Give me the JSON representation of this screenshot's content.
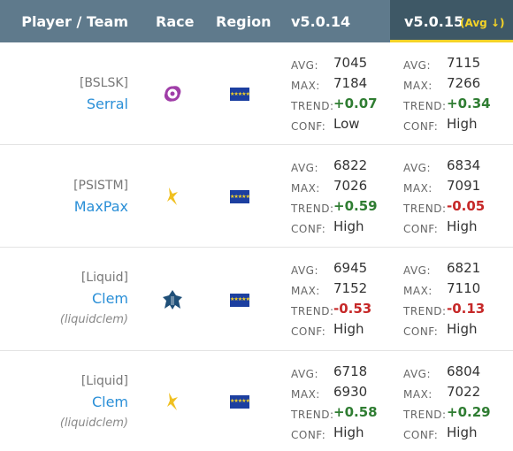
{
  "header": {
    "player_team": "Player / Team",
    "race": "Race",
    "region": "Region",
    "version_prev": "v5.0.14",
    "version_curr": "v5.0.15",
    "sort_indicator": "(Avg ↓)"
  },
  "labels": {
    "avg": "AVG:",
    "max": "MAX:",
    "trend": "TREND:",
    "conf": "CONF:"
  },
  "rows": [
    {
      "team": "[BSLSK]",
      "name": "Serral",
      "alias": "",
      "race": "zerg-icon",
      "region": "eu-flag-icon",
      "prev": {
        "avg": "7045",
        "max": "7184",
        "trend": "+0.07",
        "trend_dir": "pos",
        "conf": "Low"
      },
      "curr": {
        "avg": "7115",
        "max": "7266",
        "trend": "+0.34",
        "trend_dir": "pos",
        "conf": "High"
      }
    },
    {
      "team": "[PSISTM]",
      "name": "MaxPax",
      "alias": "",
      "race": "protoss-icon",
      "region": "eu-flag-icon",
      "prev": {
        "avg": "6822",
        "max": "7026",
        "trend": "+0.59",
        "trend_dir": "pos",
        "conf": "High"
      },
      "curr": {
        "avg": "6834",
        "max": "7091",
        "trend": "-0.05",
        "trend_dir": "neg",
        "conf": "High"
      }
    },
    {
      "team": "[Liquid]",
      "name": "Clem",
      "alias": "(liquidclem)",
      "race": "terran-icon",
      "region": "eu-flag-icon",
      "prev": {
        "avg": "6945",
        "max": "7152",
        "trend": "-0.53",
        "trend_dir": "neg",
        "conf": "High"
      },
      "curr": {
        "avg": "6821",
        "max": "7110",
        "trend": "-0.13",
        "trend_dir": "neg",
        "conf": "High"
      }
    },
    {
      "team": "[Liquid]",
      "name": "Clem",
      "alias": "(liquidclem)",
      "race": "protoss-icon",
      "region": "eu-flag-icon",
      "prev": {
        "avg": "6718",
        "max": "6930",
        "trend": "+0.58",
        "trend_dir": "pos",
        "conf": "High"
      },
      "curr": {
        "avg": "6804",
        "max": "7022",
        "trend": "+0.29",
        "trend_dir": "pos",
        "conf": "High"
      }
    }
  ]
}
